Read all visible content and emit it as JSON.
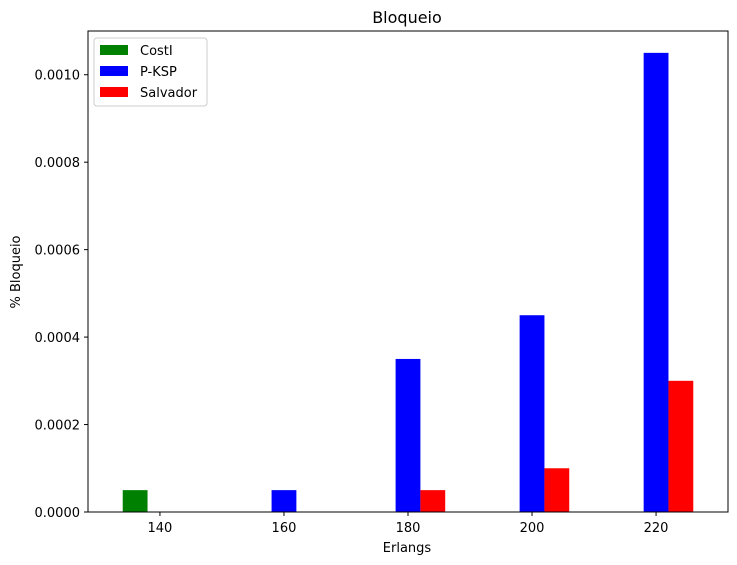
{
  "chart_data": {
    "type": "bar",
    "title": "Bloqueio",
    "xlabel": "Erlangs",
    "ylabel": "% Bloqueio",
    "categories": [
      "140",
      "160",
      "180",
      "200",
      "220"
    ],
    "x": [
      140,
      160,
      180,
      200,
      220
    ],
    "ylim": [
      0,
      0.0011
    ],
    "yticks": [
      "0.0000",
      "0.0002",
      "0.0004",
      "0.0006",
      "0.0008",
      "0.0010"
    ],
    "ytick_values": [
      0,
      0.0002,
      0.0004,
      0.0006,
      0.0008,
      0.001
    ],
    "grid": false,
    "legend_position": "top-left",
    "series": [
      {
        "name": "CostI",
        "color": "#008000",
        "values": [
          5e-05,
          0,
          0,
          0,
          0
        ]
      },
      {
        "name": "P-KSP",
        "color": "#0000ff",
        "values": [
          0,
          5e-05,
          0.00035,
          0.00045,
          0.00105
        ]
      },
      {
        "name": "Salvador",
        "color": "#ff0000",
        "values": [
          0,
          0,
          5e-05,
          0.0001,
          0.0003
        ]
      }
    ]
  }
}
